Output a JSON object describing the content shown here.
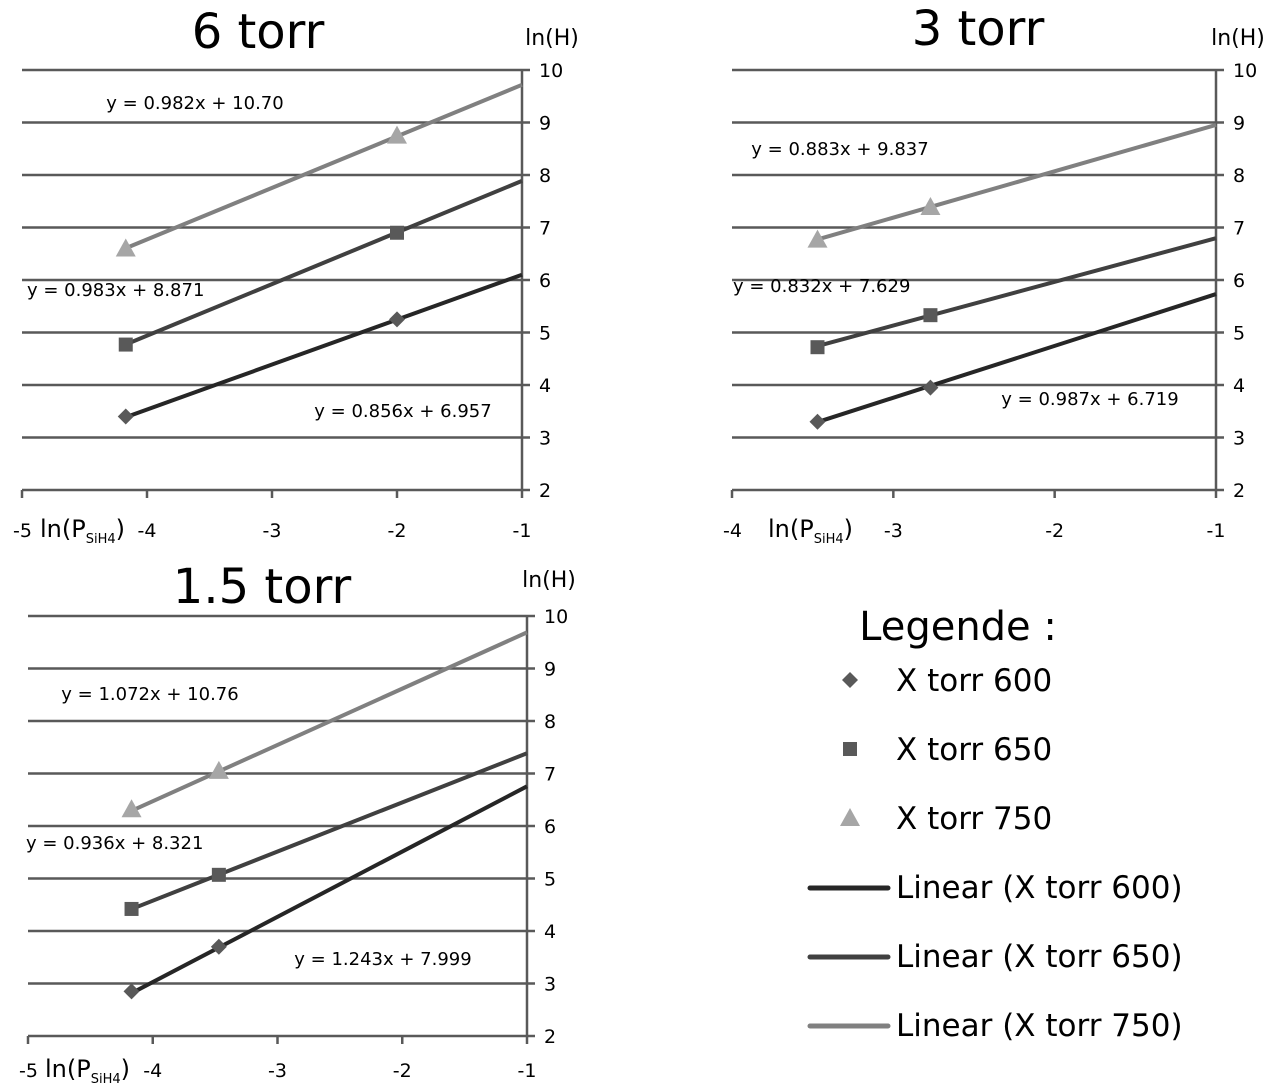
{
  "chart_data": [
    {
      "type": "scatter",
      "title": "6 torr",
      "xlabel_main": "ln(P",
      "xlabel_sub": "SiH4",
      "xlabel_close": ")",
      "ylabel": "ln(H)",
      "xlim": [
        -5,
        -1
      ],
      "ylim": [
        2,
        10
      ],
      "x_ticks": [
        "-5",
        "-4",
        "-3",
        "-2",
        "-1"
      ],
      "y_ticks": [
        "2",
        "3",
        "4",
        "5",
        "6",
        "7",
        "8",
        "9",
        "10"
      ],
      "grid": true,
      "series": [
        {
          "name": "X torr 600",
          "marker": "diamond",
          "color": "#595959",
          "points": [
            {
              "x": -4.17,
              "y": 3.4
            },
            {
              "x": -2.0,
              "y": 5.25
            }
          ],
          "fit_label": "y = 0.856x + 6.957",
          "slope": 0.856,
          "intercept": 6.957,
          "fit_color": "#262626"
        },
        {
          "name": "X torr 650",
          "marker": "square",
          "color": "#595959",
          "points": [
            {
              "x": -4.17,
              "y": 4.77
            },
            {
              "x": -2.0,
              "y": 6.9
            }
          ],
          "fit_label": "y = 0.983x + 8.871",
          "slope": 0.983,
          "intercept": 8.871,
          "fit_color": "#404040"
        },
        {
          "name": "X torr 750",
          "marker": "triangle",
          "color": "#a6a6a6",
          "points": [
            {
              "x": -4.17,
              "y": 6.6
            },
            {
              "x": -2.0,
              "y": 8.75
            }
          ],
          "fit_label": "y = 0.982x + 10.70",
          "slope": 0.982,
          "intercept": 10.7,
          "fit_color": "#808080"
        }
      ]
    },
    {
      "type": "scatter",
      "title": "3 torr",
      "xlabel_main": "ln(P",
      "xlabel_sub": "SiH4",
      "xlabel_close": ")",
      "ylabel": "ln(H)",
      "xlim": [
        -4,
        -1
      ],
      "ylim": [
        2,
        10
      ],
      "x_ticks": [
        "-4",
        "-3",
        "-2",
        "-1"
      ],
      "y_ticks": [
        "2",
        "3",
        "4",
        "5",
        "6",
        "7",
        "8",
        "9",
        "10"
      ],
      "grid": true,
      "series": [
        {
          "name": "X torr 600",
          "marker": "diamond",
          "color": "#595959",
          "points": [
            {
              "x": -3.47,
              "y": 3.3
            },
            {
              "x": -2.77,
              "y": 3.95
            }
          ],
          "fit_label": "y = 0.987x + 6.719",
          "slope": 0.987,
          "intercept": 6.719,
          "fit_color": "#262626"
        },
        {
          "name": "X torr 650",
          "marker": "square",
          "color": "#595959",
          "points": [
            {
              "x": -3.47,
              "y": 4.72
            },
            {
              "x": -2.77,
              "y": 5.33
            }
          ],
          "fit_label": "y = 0.832x + 7.629",
          "slope": 0.832,
          "intercept": 7.629,
          "fit_color": "#404040"
        },
        {
          "name": "X torr 750",
          "marker": "triangle",
          "color": "#a6a6a6",
          "points": [
            {
              "x": -3.47,
              "y": 6.77
            },
            {
              "x": -2.77,
              "y": 7.39
            }
          ],
          "fit_label": "y = 0.883x + 9.837",
          "slope": 0.883,
          "intercept": 9.837,
          "fit_color": "#808080"
        }
      ]
    },
    {
      "type": "scatter",
      "title": "1.5 torr",
      "xlabel_main": "ln(P",
      "xlabel_sub": "SiH4",
      "xlabel_close": ")",
      "ylabel": "ln(H)",
      "xlim": [
        -5,
        -1
      ],
      "ylim": [
        2,
        10
      ],
      "x_ticks": [
        "-5",
        "-4",
        "-3",
        "-2",
        "-1"
      ],
      "y_ticks": [
        "2",
        "3",
        "4",
        "5",
        "6",
        "7",
        "8",
        "9",
        "10"
      ],
      "grid": true,
      "series": [
        {
          "name": "X torr 600",
          "marker": "diamond",
          "color": "#595959",
          "points": [
            {
              "x": -4.17,
              "y": 2.85
            },
            {
              "x": -3.47,
              "y": 3.7
            }
          ],
          "fit_label": "y = 1.243x + 7.999",
          "slope": 1.243,
          "intercept": 7.999,
          "fit_color": "#262626"
        },
        {
          "name": "X torr 650",
          "marker": "square",
          "color": "#595959",
          "points": [
            {
              "x": -4.17,
              "y": 4.42
            },
            {
              "x": -3.47,
              "y": 5.07
            }
          ],
          "fit_label": "y = 0.936x + 8.321",
          "slope": 0.936,
          "intercept": 8.321,
          "fit_color": "#404040"
        },
        {
          "name": "X torr 750",
          "marker": "triangle",
          "color": "#a6a6a6",
          "points": [
            {
              "x": -4.17,
              "y": 6.32
            },
            {
              "x": -3.47,
              "y": 7.05
            }
          ],
          "fit_label": "y = 1.072x + 10.76",
          "slope": 1.072,
          "intercept": 10.76,
          "fit_color": "#808080"
        }
      ]
    }
  ],
  "legend": {
    "title": "Legende :",
    "entries": [
      {
        "label": "X torr 600",
        "kind": "diamond",
        "color": "#595959"
      },
      {
        "label": "X torr 650",
        "kind": "square",
        "color": "#595959"
      },
      {
        "label": "X torr 750",
        "kind": "triangle",
        "color": "#a6a6a6"
      },
      {
        "label": "Linear (X torr 600)",
        "kind": "line",
        "color": "#262626"
      },
      {
        "label": "Linear (X torr 650)",
        "kind": "line",
        "color": "#404040"
      },
      {
        "label": "Linear (X torr 750)",
        "kind": "line",
        "color": "#808080"
      }
    ]
  },
  "colors": {
    "grid": "#595959",
    "axis": "#595959"
  }
}
